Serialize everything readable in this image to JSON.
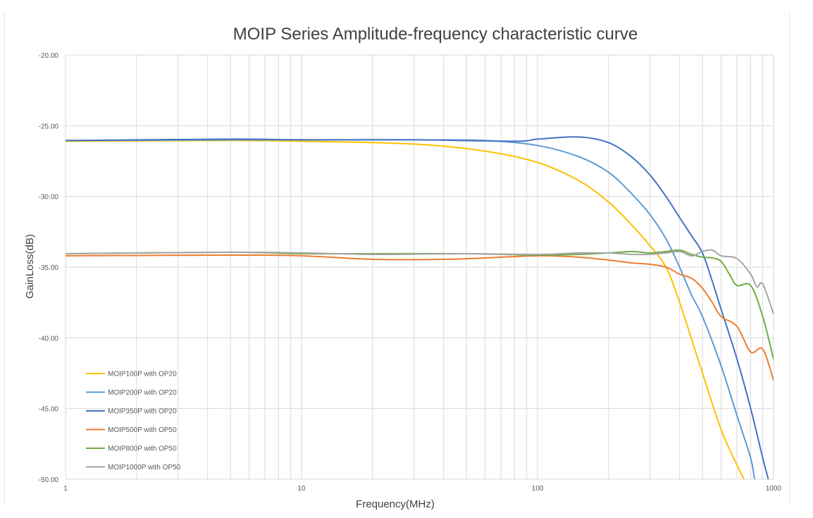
{
  "chart_data": {
    "type": "line",
    "title": "MOIP Series Amplitude-frequency characteristic curve",
    "xlabel": "Frequency(MHz)",
    "ylabel": "GainLoss(dB)",
    "x_scale": "log",
    "xlim": [
      1,
      1000
    ],
    "ylim": [
      -50,
      -20
    ],
    "x_ticks": [
      1,
      10,
      100,
      1000
    ],
    "x_tick_labels": [
      "1",
      "10",
      "100",
      "1000"
    ],
    "y_ticks": [
      -20,
      -25,
      -30,
      -35,
      -40,
      -45,
      -50
    ],
    "y_tick_labels": [
      "-20.00",
      "-25.00",
      "-30.00",
      "-35.00",
      "-40.00",
      "-45.00",
      "-50.00"
    ],
    "grid": {
      "horizontal": true,
      "vertical_log_minor": true
    },
    "legend_position": "bottom-left",
    "series": [
      {
        "name": "MOIP100P with OP20",
        "color": "#ffc000",
        "x": [
          1,
          5,
          10,
          30,
          60,
          100,
          150,
          200,
          250,
          300,
          350,
          400,
          500,
          600,
          700,
          750
        ],
        "y": [
          -26.1,
          -26.05,
          -26.1,
          -26.3,
          -26.8,
          -27.6,
          -28.9,
          -30.4,
          -32.0,
          -33.5,
          -35.0,
          -37.5,
          -42.5,
          -46.5,
          -49.0,
          -50.0
        ]
      },
      {
        "name": "MOIP200P with OP20",
        "color": "#5b9bd5",
        "x": [
          1,
          5,
          10,
          30,
          60,
          100,
          150,
          200,
          250,
          300,
          350,
          400,
          450,
          500,
          600,
          700,
          800,
          830
        ],
        "y": [
          -26.05,
          -26.0,
          -26.0,
          -26.0,
          -26.05,
          -26.4,
          -27.2,
          -28.3,
          -29.8,
          -31.3,
          -33.0,
          -35.0,
          -37.0,
          -38.5,
          -42.0,
          -45.5,
          -48.5,
          -50.0
        ]
      },
      {
        "name": "MOIP350P with OP20",
        "color": "#4472c4",
        "x": [
          1,
          5,
          10,
          30,
          80,
          100,
          150,
          200,
          250,
          300,
          350,
          400,
          450,
          500,
          550,
          600,
          700,
          800,
          900,
          950
        ],
        "y": [
          -26.05,
          -25.95,
          -26.0,
          -26.0,
          -26.1,
          -25.95,
          -25.8,
          -26.2,
          -27.2,
          -28.5,
          -30.0,
          -31.5,
          -32.8,
          -34.0,
          -36.0,
          -38.0,
          -41.5,
          -45.0,
          -48.5,
          -50.0
        ]
      },
      {
        "name": "MOIP500P with OP50",
        "color": "#ed7d31",
        "x": [
          1,
          5,
          10,
          20,
          40,
          60,
          100,
          150,
          200,
          250,
          300,
          350,
          400,
          450,
          500,
          550,
          600,
          700,
          800,
          900,
          1000
        ],
        "y": [
          -34.2,
          -34.15,
          -34.2,
          -34.45,
          -34.45,
          -34.35,
          -34.2,
          -34.3,
          -34.5,
          -34.7,
          -34.8,
          -35.0,
          -35.5,
          -35.8,
          -36.5,
          -37.5,
          -38.5,
          -39.2,
          -41.0,
          -40.8,
          -43.0
        ]
      },
      {
        "name": "MOIP800P with OP50",
        "color": "#70ad47",
        "x": [
          1,
          5,
          10,
          20,
          50,
          100,
          150,
          200,
          250,
          300,
          350,
          400,
          450,
          500,
          550,
          600,
          650,
          700,
          800,
          900,
          1000
        ],
        "y": [
          -34.05,
          -33.95,
          -34.05,
          -34.05,
          -34.05,
          -34.15,
          -34.1,
          -34.0,
          -33.9,
          -34.0,
          -33.9,
          -33.8,
          -34.1,
          -34.3,
          -34.35,
          -34.6,
          -35.5,
          -36.3,
          -36.3,
          -38.5,
          -41.5
        ]
      },
      {
        "name": "MOIP1000P with OP50",
        "color": "#a5a5a5",
        "x": [
          1,
          5,
          10,
          20,
          50,
          100,
          150,
          200,
          250,
          300,
          350,
          400,
          450,
          500,
          550,
          600,
          700,
          800,
          850,
          900,
          1000
        ],
        "y": [
          -34.05,
          -33.95,
          -34.0,
          -34.1,
          -34.05,
          -34.1,
          -34.0,
          -34.0,
          -34.1,
          -34.1,
          -34.0,
          -33.9,
          -34.2,
          -33.9,
          -33.8,
          -34.2,
          -34.4,
          -35.5,
          -36.4,
          -36.2,
          -38.3
        ]
      }
    ]
  }
}
